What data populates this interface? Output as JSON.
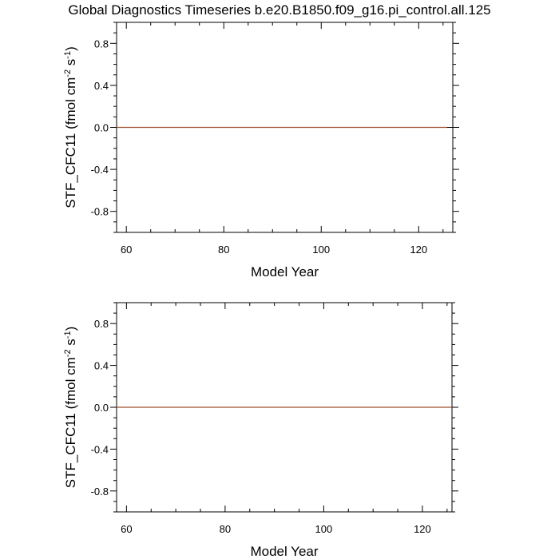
{
  "title": "Global Diagnostics Timeseries b.e20.B1850.f09_g16.pi_control.all.125",
  "line_color": "#a0522d",
  "chart_data": [
    {
      "type": "line",
      "xlabel": "Model Year",
      "ylabel": {
        "name": "STF_CFC11",
        "unit_prefix": "(fmol cm",
        "exp1": "-2",
        "unit_mid": " s",
        "exp2": "-1",
        "unit_suffix": ")"
      },
      "xlim": [
        58,
        127
      ],
      "ylim": [
        -1,
        1
      ],
      "x_ticks": [
        60,
        80,
        100,
        120
      ],
      "y_ticks": [
        -0.8,
        -0.4,
        0.0,
        0.4,
        0.8
      ],
      "x_tick_labels": [
        "60",
        "80",
        "100",
        "120"
      ],
      "y_tick_labels": [
        "-0.8",
        "-0.4",
        "0.0",
        "0.4",
        "0.8"
      ],
      "grid": false,
      "series": [
        {
          "x": [
            58,
            125.8
          ],
          "y": [
            0,
            0
          ]
        }
      ]
    },
    {
      "type": "line",
      "xlabel": "Model Year",
      "ylabel": {
        "name": "STF_CFC11",
        "unit_prefix": "(fmol cm",
        "exp1": "-2",
        "unit_mid": " s",
        "exp2": "-1",
        "unit_suffix": ")"
      },
      "xlim": [
        58,
        126
      ],
      "ylim": [
        -1,
        1
      ],
      "x_ticks": [
        60,
        80,
        100,
        120
      ],
      "y_ticks": [
        -0.8,
        -0.4,
        0.0,
        0.4,
        0.8
      ],
      "x_tick_labels": [
        "60",
        "80",
        "100",
        "120"
      ],
      "y_tick_labels": [
        "-0.8",
        "-0.4",
        "0.0",
        "0.4",
        "0.8"
      ],
      "grid": false,
      "series": [
        {
          "x": [
            58,
            126
          ],
          "y": [
            0,
            0
          ]
        }
      ]
    }
  ]
}
